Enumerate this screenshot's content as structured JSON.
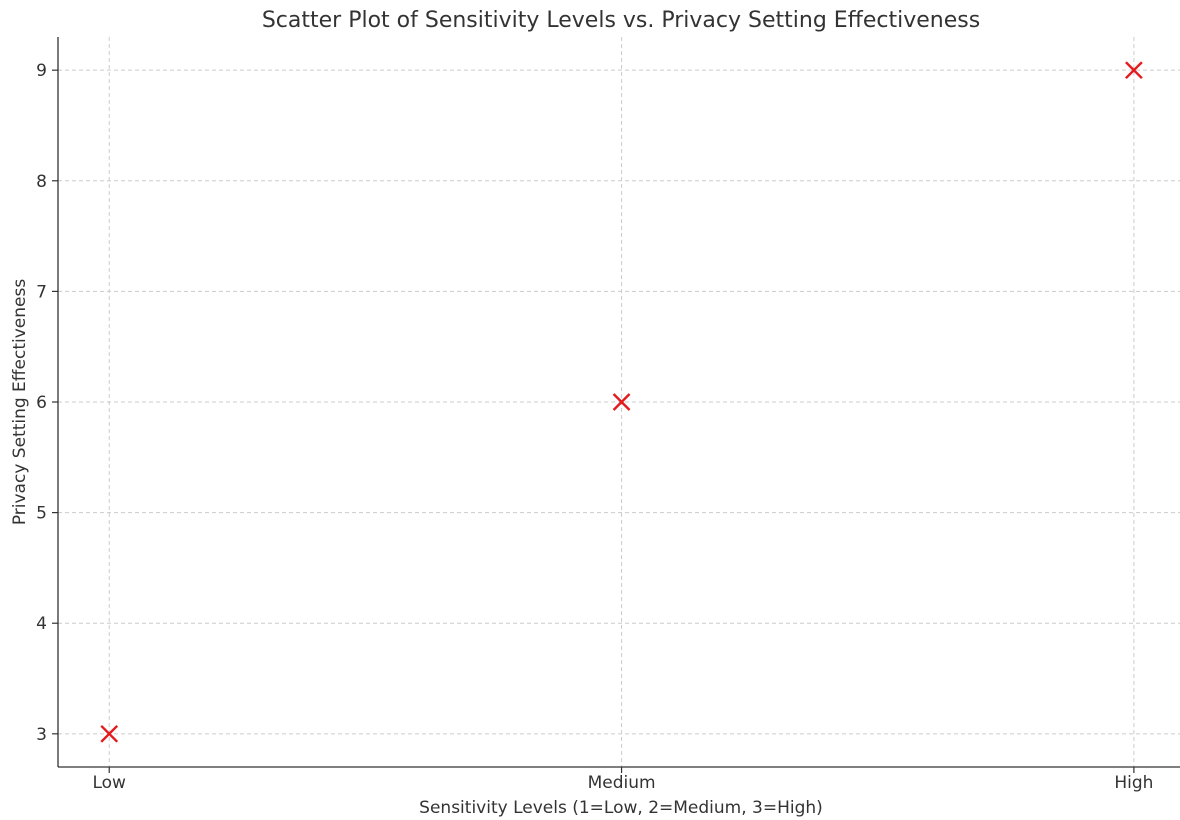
{
  "chart_data": {
    "type": "scatter",
    "title": "Scatter Plot of Sensitivity Levels vs. Privacy Setting Effectiveness",
    "xlabel": "Sensitivity Levels (1=Low, 2=Medium, 3=High)",
    "ylabel": "Privacy Setting Effectiveness",
    "x": [
      1,
      2,
      3
    ],
    "x_tick_values": [
      1,
      2,
      3
    ],
    "x_tick_labels": [
      "Low",
      "Medium",
      "High"
    ],
    "y_tick_values": [
      3,
      4,
      5,
      6,
      7,
      8,
      9
    ],
    "y_tick_labels": [
      "3",
      "4",
      "5",
      "6",
      "7",
      "8",
      "9"
    ],
    "xlim": [
      0.9,
      3.09
    ],
    "ylim": [
      2.7,
      9.3
    ],
    "grid": true,
    "marker": "x",
    "series": [
      {
        "values": [
          3,
          6,
          9
        ],
        "color": "#e41a1c"
      }
    ]
  }
}
